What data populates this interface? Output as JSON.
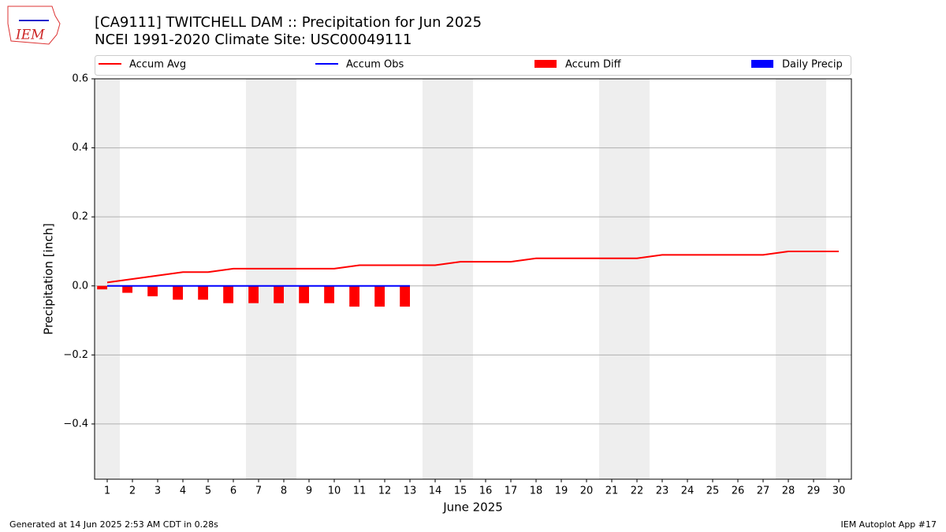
{
  "chart_data": {
    "type": "combo",
    "title": "[CA9111] TWITCHELL DAM :: Precipitation for Jun 2025",
    "subtitle": "NCEI 1991-2020 Climate Site: USC00049111",
    "logo_text": "IEM",
    "x_label": "June 2025",
    "y_label": "Precipitation [inch]",
    "footer_left": "Generated at 14 Jun 2025 2:53 AM CDT in 0.28s",
    "footer_right": "IEM Autoplot App #17",
    "x": [
      1,
      2,
      3,
      4,
      5,
      6,
      7,
      8,
      9,
      10,
      11,
      12,
      13,
      14,
      15,
      16,
      17,
      18,
      19,
      20,
      21,
      22,
      23,
      24,
      25,
      26,
      27,
      28,
      29,
      30
    ],
    "xlim": [
      0.5,
      30.5
    ],
    "xticks": [
      1,
      2,
      3,
      4,
      5,
      6,
      7,
      8,
      9,
      10,
      11,
      12,
      13,
      14,
      15,
      16,
      17,
      18,
      19,
      20,
      21,
      22,
      23,
      24,
      25,
      26,
      27,
      28,
      29,
      30
    ],
    "ylim": [
      -0.56,
      0.6
    ],
    "yticks": [
      {
        "value": -0.4,
        "label": "−0.4"
      },
      {
        "value": -0.2,
        "label": "−0.2"
      },
      {
        "value": 0,
        "label": "0.0"
      },
      0.2,
      0.4,
      0.6
    ],
    "grid": true,
    "shaded_days": [
      1,
      7,
      8,
      14,
      15,
      21,
      22,
      28,
      29
    ],
    "shade_color": "#eeeeee",
    "series": [
      {
        "name": "Accum Avg",
        "kind": "line",
        "color": "#ff0000",
        "values": [
          0.01,
          0.02,
          0.03,
          0.04,
          0.04,
          0.05,
          0.05,
          0.05,
          0.05,
          0.05,
          0.06,
          0.06,
          0.06,
          0.06,
          0.07,
          0.07,
          0.07,
          0.08,
          0.08,
          0.08,
          0.08,
          0.08,
          0.09,
          0.09,
          0.09,
          0.09,
          0.09,
          0.1,
          0.1,
          0.1
        ]
      },
      {
        "name": "Accum Obs",
        "kind": "line",
        "color": "#0000ff",
        "values": [
          0,
          0,
          0,
          0,
          0,
          0,
          0,
          0,
          0,
          0,
          0,
          0,
          0,
          null,
          null,
          null,
          null,
          null,
          null,
          null,
          null,
          null,
          null,
          null,
          null,
          null,
          null,
          null,
          null,
          null
        ]
      },
      {
        "name": "Accum Diff",
        "kind": "bar",
        "color": "#ff0000",
        "values": [
          -0.01,
          -0.02,
          -0.03,
          -0.04,
          -0.04,
          -0.05,
          -0.05,
          -0.05,
          -0.05,
          -0.05,
          -0.06,
          -0.06,
          -0.06,
          null,
          null,
          null,
          null,
          null,
          null,
          null,
          null,
          null,
          null,
          null,
          null,
          null,
          null,
          null,
          null,
          null
        ]
      },
      {
        "name": "Daily Precip",
        "kind": "bar",
        "color": "#0000ff",
        "values": [
          0,
          0,
          0,
          0,
          0,
          0,
          0,
          0,
          0,
          0,
          0,
          0,
          0,
          null,
          null,
          null,
          null,
          null,
          null,
          null,
          null,
          null,
          null,
          null,
          null,
          null,
          null,
          null,
          null,
          null
        ]
      }
    ]
  }
}
